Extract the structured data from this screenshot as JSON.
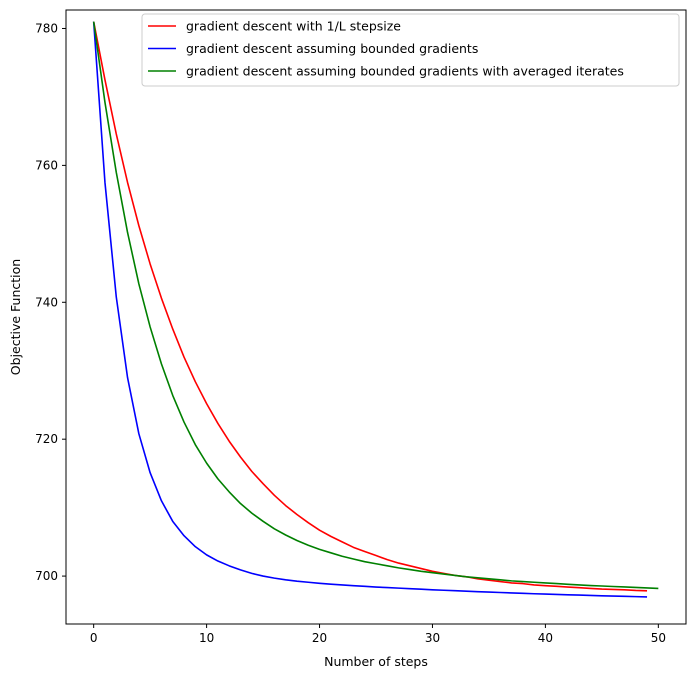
{
  "chart_data": {
    "type": "line",
    "title": "",
    "xlabel": "Number of steps",
    "ylabel": "Objective Function",
    "xlim": [
      -2.45,
      52.45
    ],
    "ylim": [
      693.0,
      782.7
    ],
    "xticks": [
      0,
      10,
      20,
      30,
      40,
      50
    ],
    "yticks": [
      700,
      720,
      740,
      760,
      780
    ],
    "xtick_labels": [
      "0",
      "10",
      "20",
      "30",
      "40",
      "50"
    ],
    "ytick_labels": [
      "700",
      "720",
      "740",
      "760",
      "780"
    ],
    "grid": false,
    "legend_position": "upper-right",
    "series": [
      {
        "name": "gradient descent with 1/L stepsize",
        "color": "#ff0000",
        "x": [
          0,
          1,
          2,
          3,
          4,
          5,
          6,
          7,
          8,
          9,
          10,
          11,
          12,
          13,
          14,
          15,
          16,
          17,
          18,
          19,
          20,
          21,
          22,
          23,
          24,
          25,
          26,
          27,
          28,
          29,
          30,
          31,
          32,
          33,
          34,
          35,
          36,
          37,
          38,
          39,
          40,
          41,
          42,
          43,
          44,
          45,
          46,
          47,
          48,
          49
        ],
        "y": [
          781.0,
          772.5,
          764.6,
          757.5,
          751.2,
          745.6,
          740.6,
          736.1,
          732.0,
          728.4,
          725.2,
          722.3,
          719.7,
          717.4,
          715.3,
          713.5,
          711.8,
          710.3,
          709.0,
          707.8,
          706.7,
          705.8,
          705.0,
          704.2,
          703.6,
          703.0,
          702.4,
          701.9,
          701.5,
          701.1,
          700.7,
          700.4,
          700.1,
          699.9,
          699.6,
          699.4,
          699.2,
          699.0,
          698.9,
          698.7,
          698.6,
          698.5,
          698.4,
          698.3,
          698.2,
          698.1,
          698.05,
          698.0,
          697.9,
          697.85
        ]
      },
      {
        "name": "gradient descent assuming bounded gradients",
        "color": "#0000ff",
        "x": [
          0,
          1,
          2,
          3,
          4,
          5,
          6,
          7,
          8,
          9,
          10,
          11,
          12,
          13,
          14,
          15,
          16,
          17,
          18,
          19,
          20,
          21,
          22,
          23,
          24,
          25,
          26,
          27,
          28,
          29,
          30,
          31,
          32,
          33,
          34,
          35,
          36,
          37,
          38,
          39,
          40,
          41,
          42,
          43,
          44,
          45,
          46,
          47,
          48,
          49
        ],
        "y": [
          781.0,
          757.5,
          740.8,
          729.0,
          720.8,
          715.1,
          711.0,
          708.0,
          705.9,
          704.3,
          703.1,
          702.2,
          701.5,
          700.9,
          700.4,
          700.0,
          699.7,
          699.45,
          699.25,
          699.1,
          698.95,
          698.82,
          698.7,
          698.6,
          698.5,
          698.4,
          698.32,
          698.24,
          698.16,
          698.08,
          698.0,
          697.93,
          697.86,
          697.79,
          697.72,
          697.66,
          697.6,
          697.54,
          697.48,
          697.42,
          697.37,
          697.32,
          697.27,
          697.22,
          697.17,
          697.12,
          697.08,
          697.04,
          697.0,
          696.95
        ]
      },
      {
        "name": "gradient descent assuming bounded gradients with averaged iterates",
        "color": "#008000",
        "x": [
          0,
          1,
          2,
          3,
          4,
          5,
          6,
          7,
          8,
          9,
          10,
          11,
          12,
          13,
          14,
          15,
          16,
          17,
          18,
          19,
          20,
          21,
          22,
          23,
          24,
          25,
          26,
          27,
          28,
          29,
          30,
          31,
          32,
          33,
          34,
          35,
          36,
          37,
          38,
          39,
          40,
          41,
          42,
          43,
          44,
          45,
          46,
          47,
          48,
          49,
          50
        ],
        "y": [
          781.0,
          769.2,
          759.0,
          750.2,
          742.7,
          736.4,
          731.0,
          726.4,
          722.5,
          719.2,
          716.5,
          714.2,
          712.3,
          710.6,
          709.2,
          708.0,
          706.9,
          706.0,
          705.2,
          704.5,
          703.9,
          703.4,
          702.9,
          702.5,
          702.1,
          701.8,
          701.5,
          701.2,
          700.95,
          700.7,
          700.5,
          700.3,
          700.1,
          699.9,
          699.75,
          699.6,
          699.45,
          699.3,
          699.2,
          699.1,
          699.0,
          698.9,
          698.8,
          698.7,
          698.62,
          698.55,
          698.48,
          698.41,
          698.34,
          698.27,
          698.2
        ]
      }
    ]
  }
}
